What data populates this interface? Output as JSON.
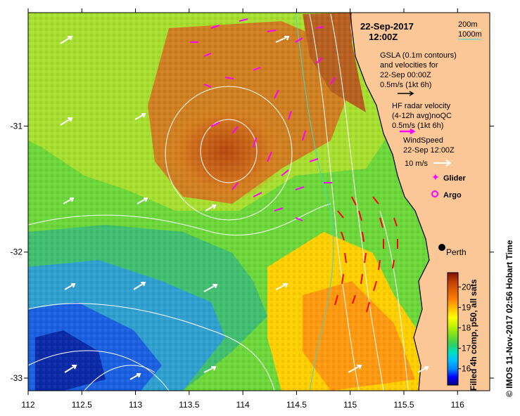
{
  "title": {
    "date": "22-Sep-2017",
    "time": "12:00Z"
  },
  "depth_legend": {
    "contour_200": "200m",
    "contour_1000": "1000m",
    "color_200": "#ffffff",
    "color_1000": "#3fd7d0"
  },
  "legend": {
    "gsla_line1": "GSLA (0.1m contours)",
    "gsla_line2": "and velocities for",
    "gsla_line3": "22-Sep 00:00Z",
    "gsla_scale": "0.5m/s (1kt 6h)",
    "hf_line1": "HF radar velocity",
    "hf_line2": "(4-12h avg)noQC",
    "hf_scale": "0.5m/s (1kt 6h)",
    "wind_line1": "WindSpeed",
    "wind_line2": "22-Sep 12:00Z",
    "wind_scale": "10 m/s",
    "glider": "Glider",
    "argo": "Argo"
  },
  "city": {
    "name": "Perth",
    "lon": 115.86,
    "lat": -31.95
  },
  "axes": {
    "x_ticks": [
      112,
      112.5,
      113,
      113.5,
      114,
      114.5,
      115,
      115.5,
      116
    ],
    "x_tick_labels": [
      "112",
      "112.5",
      "113",
      "113.5",
      "114",
      "114.5",
      "115",
      "115.5",
      "116"
    ],
    "y_ticks": [
      -31,
      -32,
      -33
    ],
    "y_tick_labels": [
      "-31",
      "-32",
      "-33"
    ],
    "xlim": [
      112,
      116.3
    ],
    "ylim": [
      -33.1,
      -30.1
    ]
  },
  "colorbar": {
    "label": "Filled 4h comp, p50, all sats",
    "ticks": [
      16,
      17,
      18,
      19,
      20
    ],
    "tick_labels": [
      "16",
      "17",
      "18",
      "19",
      "20"
    ],
    "range": [
      15.2,
      20.7
    ],
    "colors": [
      "#000080",
      "#0000ff",
      "#0080ff",
      "#00c0ff",
      "#00e0c0",
      "#30d060",
      "#70e020",
      "#c0f000",
      "#ffff00",
      "#ffc000",
      "#ff8000",
      "#e06000",
      "#c04000",
      "#a02800",
      "#801400"
    ]
  },
  "side_label": "© IMOS 11-Nov-2017 02:56 Hobart Time",
  "colors": {
    "land": "#fcc797",
    "gsla_arrow": "#ffffff",
    "hf_arrow": "#ff00ff",
    "hf_arrow_alt": "#ff0000",
    "glider": "#ff00ff",
    "argo": "#ff00ff"
  }
}
